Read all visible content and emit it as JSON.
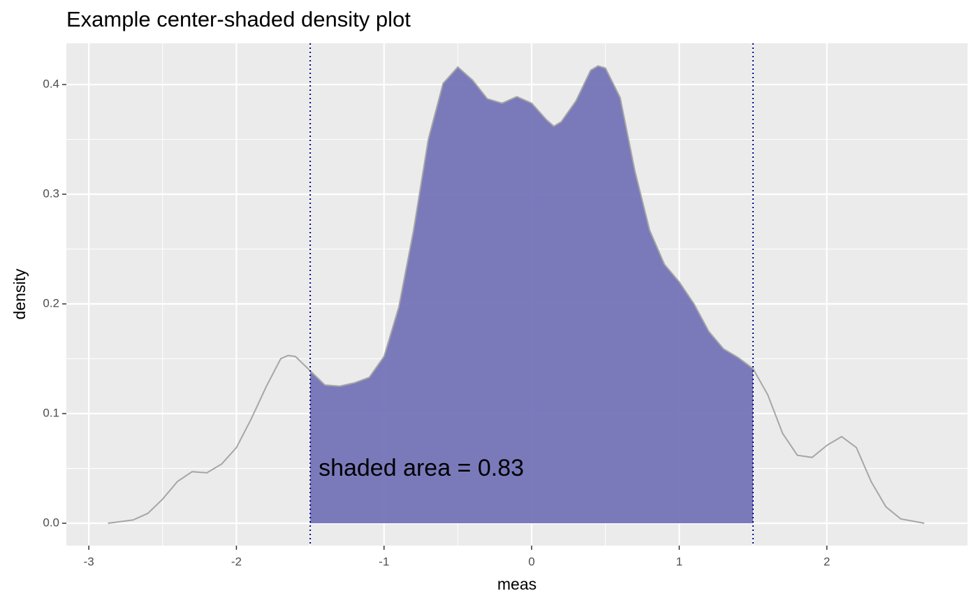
{
  "chart_data": {
    "type": "density",
    "title": "Example center-shaded density plot",
    "xlabel": "meas",
    "ylabel": "density",
    "annotation": "shaded area =  0.83",
    "x": [
      -2.87,
      -2.7,
      -2.6,
      -2.5,
      -2.4,
      -2.3,
      -2.2,
      -2.1,
      -2.0,
      -1.9,
      -1.8,
      -1.7,
      -1.65,
      -1.6,
      -1.5,
      -1.4,
      -1.3,
      -1.2,
      -1.1,
      -1.0,
      -0.9,
      -0.8,
      -0.7,
      -0.6,
      -0.5,
      -0.4,
      -0.3,
      -0.2,
      -0.1,
      0.0,
      0.1,
      0.15,
      0.2,
      0.3,
      0.4,
      0.45,
      0.5,
      0.6,
      0.7,
      0.8,
      0.9,
      1.0,
      1.1,
      1.2,
      1.3,
      1.4,
      1.5,
      1.6,
      1.7,
      1.8,
      1.9,
      2.0,
      2.1,
      2.2,
      2.3,
      2.4,
      2.5,
      2.66
    ],
    "values": [
      0.0,
      0.003,
      0.009,
      0.022,
      0.038,
      0.047,
      0.046,
      0.054,
      0.069,
      0.095,
      0.124,
      0.15,
      0.153,
      0.152,
      0.139,
      0.126,
      0.125,
      0.128,
      0.133,
      0.152,
      0.197,
      0.267,
      0.35,
      0.401,
      0.416,
      0.404,
      0.387,
      0.383,
      0.389,
      0.383,
      0.368,
      0.362,
      0.366,
      0.385,
      0.413,
      0.417,
      0.415,
      0.388,
      0.321,
      0.267,
      0.236,
      0.22,
      0.2,
      0.175,
      0.159,
      0.151,
      0.141,
      0.117,
      0.082,
      0.062,
      0.06,
      0.071,
      0.079,
      0.069,
      0.038,
      0.015,
      0.004,
      0.0
    ],
    "color": "#a6a6a6",
    "shade_range": [
      -1.5,
      1.5
    ],
    "shade_color": "#7474b8",
    "vlines": [
      -1.5,
      1.5
    ],
    "vline_color": "#00008b",
    "xlim": [
      -3.152,
      2.953
    ],
    "ylim": [
      -0.0204,
      0.4376
    ],
    "xticks": [
      -3,
      -2,
      -1,
      0,
      1,
      2
    ],
    "yticks": [
      {
        "value": 0,
        "label": "0.0"
      },
      0.1,
      0.2,
      0.3,
      0.4
    ],
    "grid": true
  }
}
